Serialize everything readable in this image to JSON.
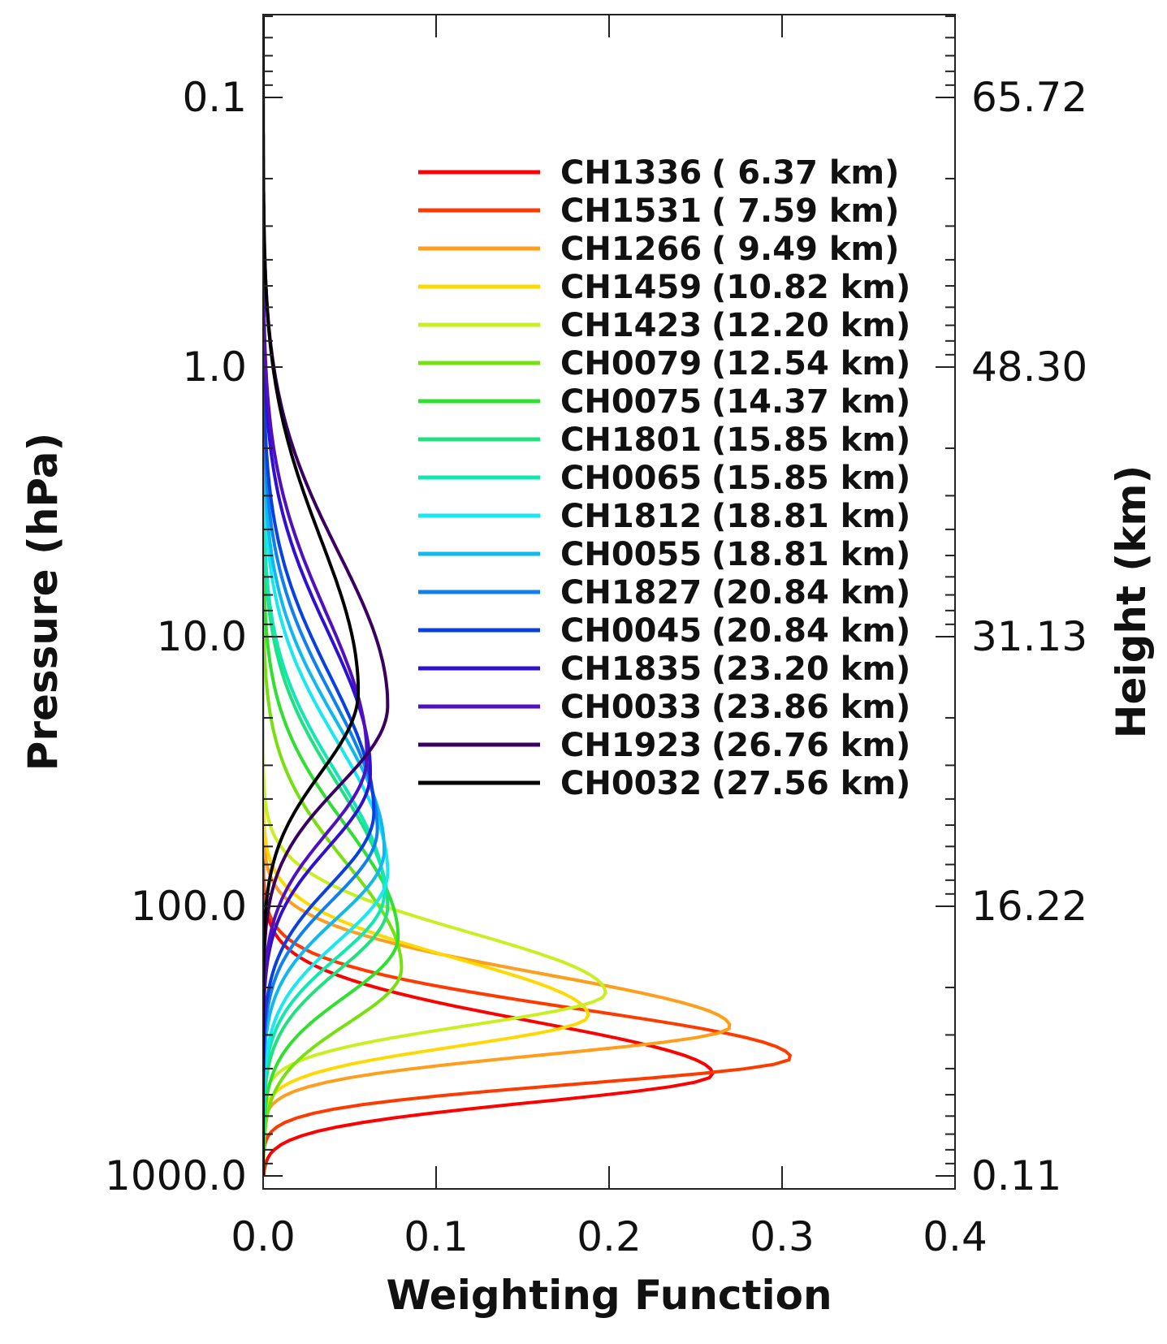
{
  "chart_data": {
    "type": "line",
    "title": "",
    "xlabel": "Weighting Function",
    "ylabel": "Pressure (hPa)",
    "y2label": "Height (km)",
    "xlim": [
      0.0,
      0.4
    ],
    "ylim_pressure_hPa": [
      1000.0,
      0.05
    ],
    "y_scale": "log",
    "x_ticks": [
      "0.0",
      "0.1",
      "0.2",
      "0.3",
      "0.4"
    ],
    "y_ticks": [
      "0.1",
      "1.0",
      "10.0",
      "100.0",
      "1000.0"
    ],
    "y2_ticks": [
      "65.72",
      "48.30",
      "31.13",
      "16.22",
      "0.11"
    ],
    "legend_position": "top-right",
    "series": [
      {
        "name": "CH1336",
        "height": "( 6.37 km)",
        "color": "#ff0000",
        "peak_p": 420,
        "peak_w": 0.26,
        "hw": 0.13
      },
      {
        "name": "CH1531",
        "height": "( 7.59 km)",
        "color": "#ff3a00",
        "peak_p": 365,
        "peak_w": 0.305,
        "hw": 0.12
      },
      {
        "name": "CH1266",
        "height": "( 9.49 km)",
        "color": "#ff9d1c",
        "peak_p": 280,
        "peak_w": 0.27,
        "hw": 0.13
      },
      {
        "name": "CH1459",
        "height": "(10.82 km)",
        "color": "#ffd800",
        "peak_p": 255,
        "peak_w": 0.188,
        "hw": 0.14
      },
      {
        "name": "CH1423",
        "height": "(12.20 km)",
        "color": "#c8f020",
        "peak_p": 210,
        "peak_w": 0.198,
        "hw": 0.15
      },
      {
        "name": "CH0079",
        "height": "(12.54 km)",
        "color": "#78e010",
        "peak_p": 170,
        "peak_w": 0.08,
        "hw": 0.26
      },
      {
        "name": "CH0075",
        "height": "(14.37 km)",
        "color": "#30e030",
        "peak_p": 130,
        "peak_w": 0.078,
        "hw": 0.28
      },
      {
        "name": "CH1801",
        "height": "(15.85 km)",
        "color": "#20e080",
        "peak_p": 100,
        "peak_w": 0.072,
        "hw": 0.3
      },
      {
        "name": "CH0065",
        "height": "(15.85 km)",
        "color": "#10e8b0",
        "peak_p": 90,
        "peak_w": 0.07,
        "hw": 0.3
      },
      {
        "name": "CH1812",
        "height": "(18.81 km)",
        "color": "#18e8f0",
        "peak_p": 75,
        "peak_w": 0.072,
        "hw": 0.32
      },
      {
        "name": "CH0055",
        "height": "(18.81 km)",
        "color": "#10b8f0",
        "peak_p": 62,
        "peak_w": 0.07,
        "hw": 0.32
      },
      {
        "name": "CH1827",
        "height": "(20.84 km)",
        "color": "#1080f0",
        "peak_p": 52,
        "peak_w": 0.066,
        "hw": 0.33
      },
      {
        "name": "CH0045",
        "height": "(20.84 km)",
        "color": "#0a40e0",
        "peak_p": 45,
        "peak_w": 0.064,
        "hw": 0.34
      },
      {
        "name": "CH1835",
        "height": "(23.20 km)",
        "color": "#3010d0",
        "peak_p": 32,
        "peak_w": 0.062,
        "hw": 0.35
      },
      {
        "name": "CH0033",
        "height": "(23.86 km)",
        "color": "#5010c0",
        "peak_p": 28,
        "peak_w": 0.06,
        "hw": 0.36
      },
      {
        "name": "CH1923",
        "height": "(26.76 km)",
        "color": "#3a0060",
        "peak_p": 18,
        "peak_w": 0.072,
        "hw": 0.38
      },
      {
        "name": "CH0032",
        "height": "(27.56 km)",
        "color": "#000000",
        "peak_p": 16,
        "peak_w": 0.055,
        "hw": 0.38
      }
    ]
  }
}
